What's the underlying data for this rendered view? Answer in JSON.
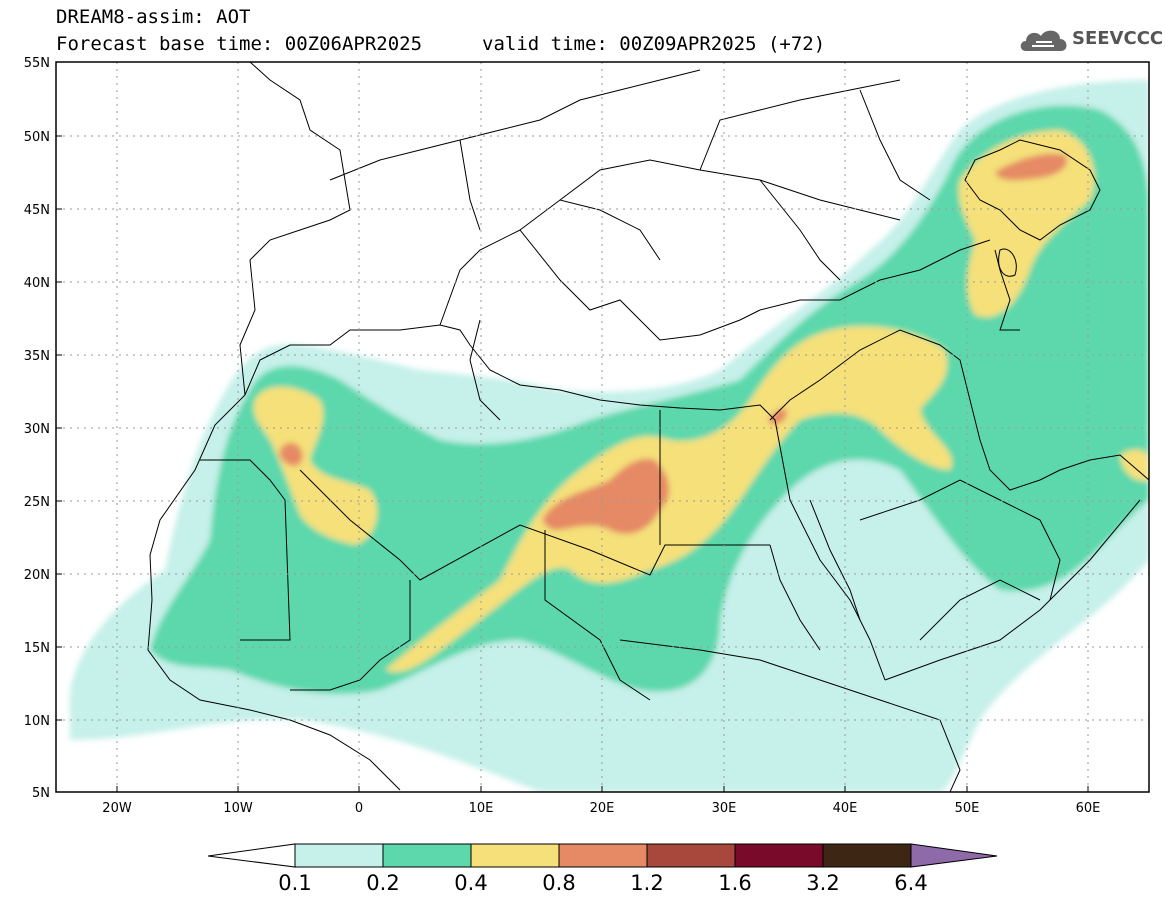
{
  "header": {
    "title_line1": "DREAM8-assim: AOT",
    "title_line2": "Forecast base time: 00Z06APR2025",
    "valid_time": "valid time: 00Z09APR2025 (+72)"
  },
  "logo": {
    "text": "SEEVCCC",
    "icon": "cloud-icon"
  },
  "map": {
    "region": "North Africa / Europe / Middle East",
    "lat_range": [
      5,
      55
    ],
    "lon_range": [
      -25,
      65
    ],
    "lat_ticks": [
      "55N",
      "50N",
      "45N",
      "40N",
      "35N",
      "30N",
      "25N",
      "20N",
      "15N",
      "10N",
      "5N"
    ],
    "lon_ticks": [
      "20W",
      "10W",
      "0",
      "10E",
      "20E",
      "30E",
      "40E",
      "50E",
      "60E"
    ],
    "gridlines": true
  },
  "colorbar": {
    "labels": [
      "0.1",
      "0.2",
      "0.4",
      "0.8",
      "1.2",
      "1.6",
      "3.2",
      "6.4"
    ],
    "colors": [
      "#c6f0ea",
      "#5cd8ac",
      "#f5e07a",
      "#e58a65",
      "#a8483c",
      "#7a0a2a",
      "#3d2614",
      "#8f6aa8"
    ]
  }
}
